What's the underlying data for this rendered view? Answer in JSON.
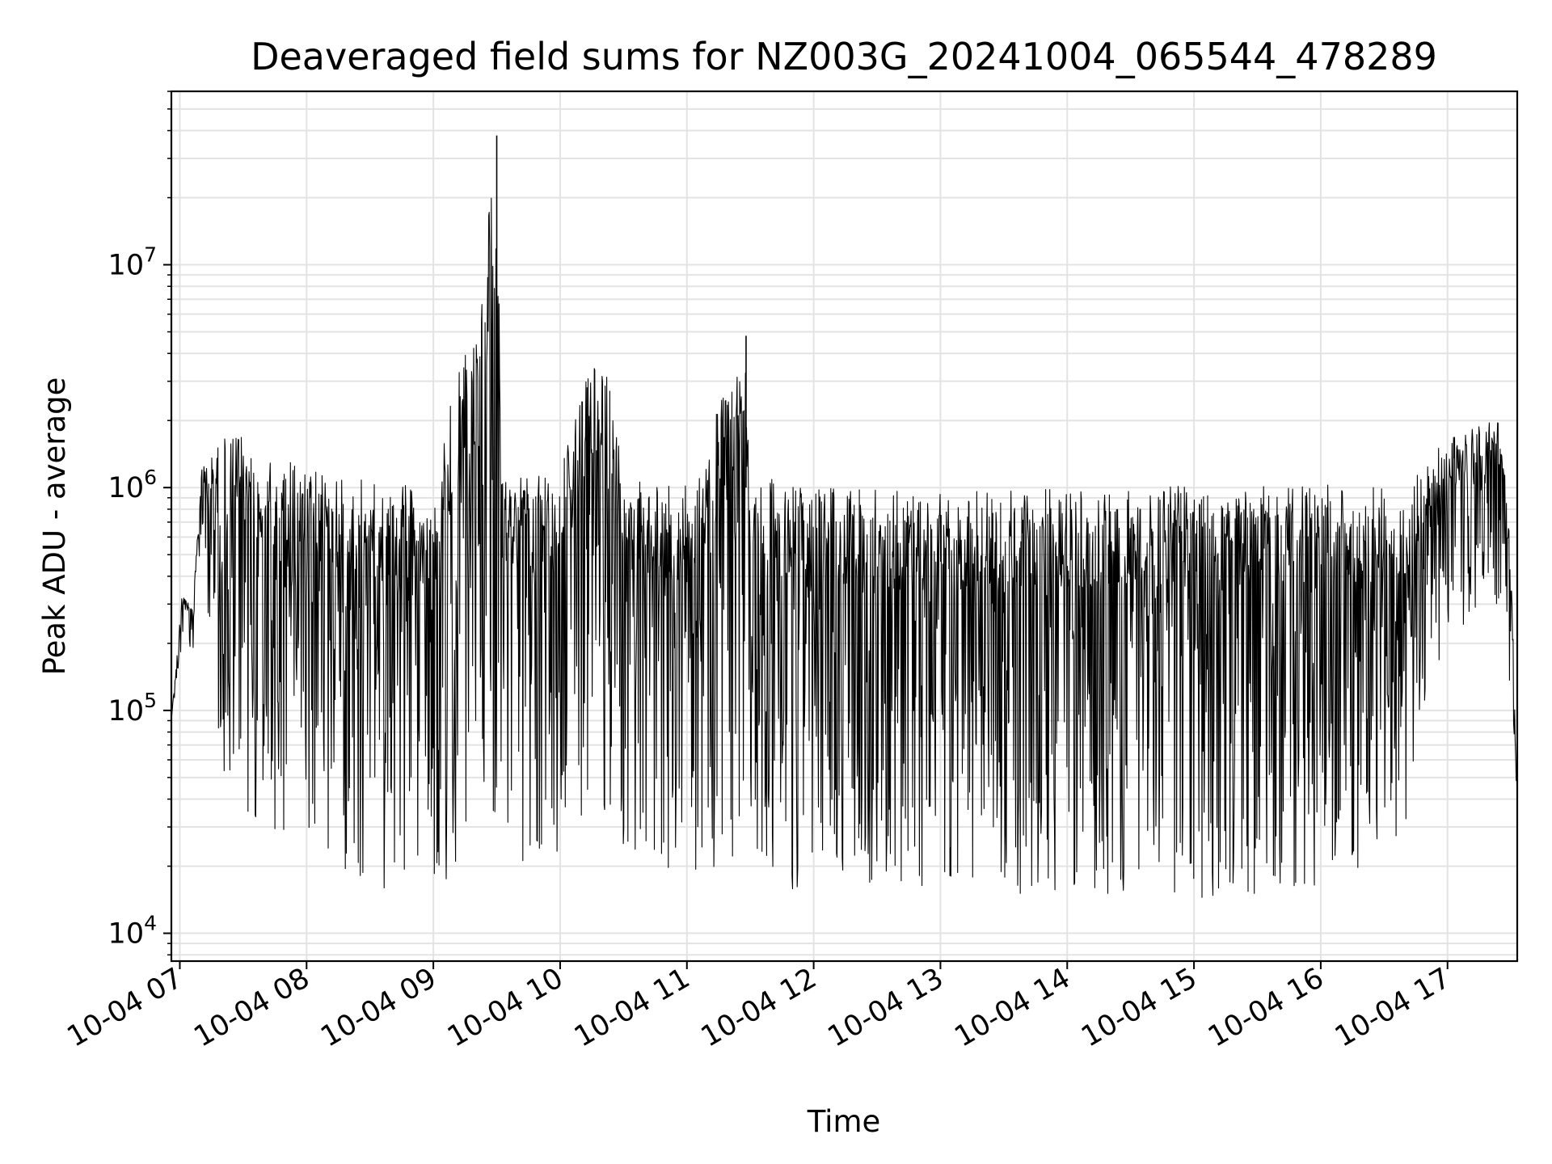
{
  "chart_data": {
    "type": "line",
    "title": "Deaveraged field sums for NZ003G_20241004_065544_478289",
    "xlabel": "Time",
    "ylabel": "Peak ADU - average",
    "yscale": "log",
    "ylim": [
      7500,
      60000000
    ],
    "xlim": [
      "10-04 06:56",
      "10-04 17:33"
    ],
    "grid": true,
    "line_color": "#000000",
    "x_ticks": [
      "10-04 07",
      "10-04 08",
      "10-04 09",
      "10-04 10",
      "10-04 11",
      "10-04 12",
      "10-04 13",
      "10-04 14",
      "10-04 15",
      "10-04 16",
      "10-04 17"
    ],
    "y_ticks": [
      {
        "value": 10000,
        "base": "10",
        "exp": "4"
      },
      {
        "value": 100000,
        "base": "10",
        "exp": "5"
      },
      {
        "value": 1000000,
        "base": "10",
        "exp": "6"
      },
      {
        "value": 10000000,
        "base": "10",
        "exp": "7"
      }
    ],
    "series": [
      {
        "x": [
          "10-04 06:56",
          "10-04 07:01",
          "10-04 07:06",
          "10-04 07:11",
          "10-04 07:16",
          "10-04 07:21",
          "10-04 07:26",
          "10-04 07:31",
          "10-04 07:36",
          "10-04 08:00",
          "10-04 08:20",
          "10-04 08:40",
          "10-04 09:00",
          "10-04 09:16",
          "10-04 09:18",
          "10-04 09:30",
          "10-04 09:31",
          "10-04 09:32",
          "10-04 10:00",
          "10-04 10:15",
          "10-04 10:22",
          "10-04 10:30",
          "10-04 11:00",
          "10-04 11:28",
          "10-04 11:29",
          "10-04 11:30",
          "10-04 12:00",
          "10-04 13:00",
          "10-04 14:00",
          "10-04 15:00",
          "10-04 16:00",
          "10-04 16:40",
          "10-04 17:00",
          "10-04 17:20",
          "10-04 17:25",
          "10-04 17:30",
          "10-04 17:33"
        ],
        "upper": [
          90000,
          330000,
          300000,
          1500000,
          1400000,
          1900000,
          2100000,
          1600000,
          1400000,
          1300000,
          1100000,
          1050000,
          1000000,
          5500000,
          4700000,
          38000000,
          12000000,
          1200000,
          1150000,
          4600000,
          5100000,
          1100000,
          1050000,
          4800000,
          2300000,
          1200000,
          1000000,
          950000,
          1000000,
          1050000,
          1050000,
          1000000,
          1700000,
          2000000,
          2100000,
          500000,
          40000
        ],
        "lower": [
          90000,
          200000,
          180000,
          500000,
          100000,
          45000,
          35000,
          32000,
          30000,
          28000,
          17000,
          15000,
          13000,
          20000,
          25000,
          25000,
          25000,
          22000,
          15000,
          25000,
          30000,
          24000,
          18000,
          20000,
          24000,
          19000,
          14000,
          14000,
          15000,
          14000,
          15000,
          25000,
          200000,
          300000,
          300000,
          120000,
          40000
        ]
      }
    ]
  }
}
